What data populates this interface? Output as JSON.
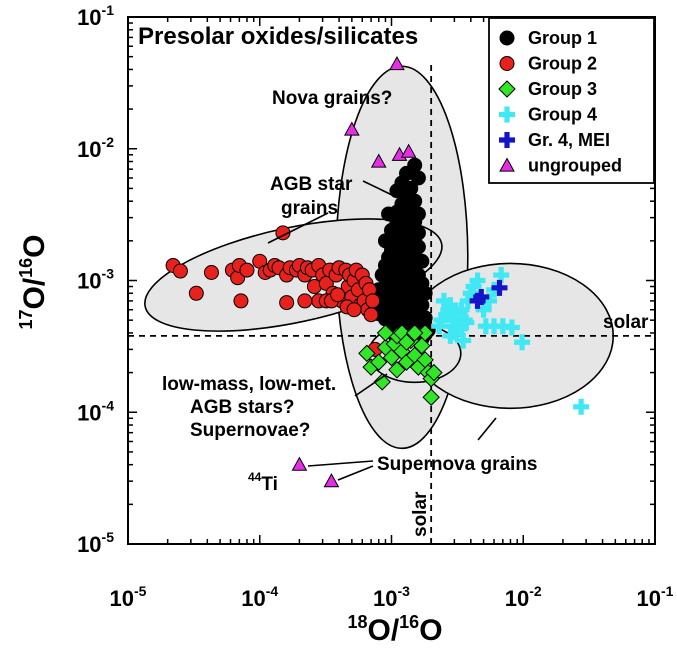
{
  "chart_data": {
    "type": "scatter",
    "title": "Presolar oxides/silicates",
    "xlabel": {
      "sup": "18",
      "base": "O/",
      "sup2": "16",
      "base2": "O"
    },
    "ylabel": {
      "sup": "17",
      "base": "O/",
      "sup2": "16",
      "base2": "O"
    },
    "x_scale": "log",
    "y_scale": "log",
    "xlim": [
      1e-05,
      0.1
    ],
    "ylim": [
      1e-05,
      0.1
    ],
    "x_ticks": [
      {
        "value": 1e-05,
        "base": "10",
        "exp": "-5"
      },
      {
        "value": 0.0001,
        "base": "10",
        "exp": "-4"
      },
      {
        "value": 0.001,
        "base": "10",
        "exp": "-3"
      },
      {
        "value": 0.01,
        "base": "10",
        "exp": "-2"
      },
      {
        "value": 0.1,
        "base": "10",
        "exp": "-1"
      }
    ],
    "y_ticks": [
      {
        "value": 1e-05,
        "base": "10",
        "exp": "-5"
      },
      {
        "value": 0.0001,
        "base": "10",
        "exp": "-4"
      },
      {
        "value": 0.001,
        "base": "10",
        "exp": "-3"
      },
      {
        "value": 0.01,
        "base": "10",
        "exp": "-2"
      },
      {
        "value": 0.1,
        "base": "10",
        "exp": "-1"
      }
    ],
    "solar": {
      "x": 0.002,
      "y": 0.00038,
      "x_label": "solar",
      "y_label": "solar"
    },
    "legend_position": "top-right",
    "regions": [
      {
        "name": "group1-ellipse",
        "cx": 0.0012,
        "cy": 0.0015,
        "rx_dec": 0.5,
        "ry_dec": 1.45,
        "angle": 0
      },
      {
        "name": "group2-ellipse",
        "cx": 0.00018,
        "cy": 0.0011,
        "rx_dec": 1.15,
        "ry_dec": 0.36,
        "angle": 12
      },
      {
        "name": "supernova-ellipse",
        "cx": 0.008,
        "cy": 0.00038,
        "rx_dec": 0.78,
        "ry_dec": 0.55,
        "angle": 0
      },
      {
        "name": "group3-ellipse",
        "cx": 0.0015,
        "cy": 0.00028,
        "rx_dec": 0.35,
        "ry_dec": 0.22,
        "angle": 0
      }
    ],
    "series": [
      {
        "name": "Group 1",
        "marker": "circle",
        "color": "#000000",
        "points": [
          [
            0.0015,
            0.0075
          ],
          [
            0.0013,
            0.0065
          ],
          [
            0.0016,
            0.006
          ],
          [
            0.0012,
            0.0055
          ],
          [
            0.0014,
            0.005
          ],
          [
            0.0011,
            0.0048
          ],
          [
            0.0013,
            0.0042
          ],
          [
            0.0015,
            0.004
          ],
          [
            0.0012,
            0.0038
          ],
          [
            0.0014,
            0.0035
          ],
          [
            0.0011,
            0.0033
          ],
          [
            0.00095,
            0.0032
          ],
          [
            0.0016,
            0.0032
          ],
          [
            0.0013,
            0.003
          ],
          [
            0.0011,
            0.0028
          ],
          [
            0.0015,
            0.0028
          ],
          [
            0.0012,
            0.0026
          ],
          [
            0.0014,
            0.0025
          ],
          [
            0.001,
            0.0024
          ],
          [
            0.0016,
            0.0023
          ],
          [
            0.0011,
            0.0022
          ],
          [
            0.0013,
            0.0021
          ],
          [
            0.0015,
            0.002
          ],
          [
            0.0012,
            0.002
          ],
          [
            0.0009,
            0.002
          ],
          [
            0.0014,
            0.0019
          ],
          [
            0.0011,
            0.0018
          ],
          [
            0.0016,
            0.0018
          ],
          [
            0.0013,
            0.0017
          ],
          [
            0.001,
            0.0017
          ],
          [
            0.0012,
            0.0016
          ],
          [
            0.0015,
            0.0016
          ],
          [
            0.00095,
            0.0015
          ],
          [
            0.0014,
            0.0015
          ],
          [
            0.0011,
            0.0014
          ],
          [
            0.0017,
            0.0014
          ],
          [
            0.0013,
            0.0014
          ],
          [
            0.0009,
            0.0013
          ],
          [
            0.0012,
            0.0013
          ],
          [
            0.0015,
            0.0013
          ],
          [
            0.001,
            0.0012
          ],
          [
            0.0014,
            0.0012
          ],
          [
            0.0011,
            0.0011
          ],
          [
            0.0016,
            0.0011
          ],
          [
            0.0013,
            0.0011
          ],
          [
            0.00085,
            0.0011
          ],
          [
            0.0012,
            0.001
          ],
          [
            0.0015,
            0.001
          ],
          [
            0.00095,
            0.001
          ],
          [
            0.0014,
            0.00095
          ],
          [
            0.0011,
            0.00095
          ],
          [
            0.0017,
            0.00095
          ],
          [
            0.0009,
            0.0009
          ],
          [
            0.0013,
            0.0009
          ],
          [
            0.0016,
            0.0009
          ],
          [
            0.001,
            0.00088
          ],
          [
            0.0012,
            0.00085
          ],
          [
            0.0015,
            0.00085
          ],
          [
            0.0008,
            0.00085
          ],
          [
            0.0014,
            0.0008
          ],
          [
            0.0011,
            0.0008
          ],
          [
            0.0018,
            0.0008
          ],
          [
            0.0009,
            0.00078
          ],
          [
            0.0013,
            0.00076
          ],
          [
            0.0016,
            0.00075
          ],
          [
            0.001,
            0.00073
          ],
          [
            0.0012,
            0.0007
          ],
          [
            0.0015,
            0.0007
          ],
          [
            0.00085,
            0.0007
          ],
          [
            0.0014,
            0.00068
          ],
          [
            0.0011,
            0.00066
          ],
          [
            0.0017,
            0.00065
          ],
          [
            0.0009,
            0.00064
          ],
          [
            0.0013,
            0.00062
          ],
          [
            0.0016,
            0.0006
          ],
          [
            0.001,
            0.0006
          ],
          [
            0.0012,
            0.00058
          ],
          [
            0.0015,
            0.00056
          ],
          [
            0.0008,
            0.00056
          ],
          [
            0.0014,
            0.00054
          ],
          [
            0.0011,
            0.00053
          ],
          [
            0.0018,
            0.00052
          ],
          [
            0.0009,
            0.00051
          ],
          [
            0.0013,
            0.0005
          ],
          [
            0.0016,
            0.00049
          ],
          [
            0.001,
            0.00048
          ],
          [
            0.0012,
            0.00047
          ],
          [
            0.0015,
            0.00046
          ],
          [
            0.0014,
            0.00045
          ],
          [
            0.0011,
            0.00044
          ],
          [
            0.0017,
            0.00044
          ],
          [
            0.0013,
            0.00043
          ],
          [
            0.0019,
            0.00042
          ],
          [
            0.0016,
            0.00041
          ],
          [
            0.0012,
            0.0004
          ],
          [
            0.0014,
            0.0004
          ],
          [
            0.00105,
            0.00039
          ],
          [
            0.0018,
            0.00039
          ],
          [
            0.0015,
            0.00038
          ],
          [
            0.0013,
            0.00037
          ],
          [
            0.0017,
            0.00036
          ],
          [
            0.0011,
            0.00036
          ]
        ]
      },
      {
        "name": "Group 2",
        "marker": "circle",
        "color": "#e8211d",
        "points": [
          [
            2.2e-05,
            0.0013
          ],
          [
            2.5e-05,
            0.00118
          ],
          [
            3.3e-05,
            0.0008
          ],
          [
            4.3e-05,
            0.00115
          ],
          [
            6.2e-05,
            0.0012
          ],
          [
            6.8e-05,
            0.00105
          ],
          [
            7.2e-05,
            0.0007
          ],
          [
            7e-05,
            0.0013
          ],
          [
            8e-05,
            0.0012
          ],
          [
            0.0001,
            0.0014
          ],
          [
            0.00011,
            0.00115
          ],
          [
            0.00012,
            0.0012
          ],
          [
            0.00013,
            0.0013
          ],
          [
            0.00014,
            0.00125
          ],
          [
            0.00016,
            0.0011
          ],
          [
            0.00017,
            0.00125
          ],
          [
            0.00019,
            0.0012
          ],
          [
            0.0002,
            0.0013
          ],
          [
            0.00022,
            0.0011
          ],
          [
            0.00023,
            0.00125
          ],
          [
            0.00025,
            0.0012
          ],
          [
            0.00026,
            0.0009
          ],
          [
            0.00028,
            0.0013
          ],
          [
            0.0003,
            0.0011
          ],
          [
            0.00032,
            0.00095
          ],
          [
            0.00034,
            0.0012
          ],
          [
            0.00036,
            0.0008
          ],
          [
            0.00038,
            0.0011
          ],
          [
            0.0004,
            0.00125
          ],
          [
            0.00042,
            0.0007
          ],
          [
            0.00045,
            0.0012
          ],
          [
            0.00047,
            0.0009
          ],
          [
            0.00048,
            0.0011
          ],
          [
            0.0005,
            0.00075
          ],
          [
            0.00052,
            0.001
          ],
          [
            0.00054,
            0.0012
          ],
          [
            0.00056,
            0.00085
          ],
          [
            0.00058,
            0.00065
          ],
          [
            0.0006,
            0.0011
          ],
          [
            0.00062,
            0.0007
          ],
          [
            0.00064,
            0.00095
          ],
          [
            0.00066,
            0.0006
          ],
          [
            0.00068,
            0.00085
          ],
          [
            0.0007,
            0.00055
          ],
          [
            0.00072,
            0.0007
          ],
          [
            0.00028,
            0.0007
          ],
          [
            0.00032,
            0.0007
          ],
          [
            0.00035,
            0.0007
          ],
          [
            0.00022,
            0.0007
          ],
          [
            0.00016,
            0.00068
          ],
          [
            0.00075,
            0.0003
          ],
          [
            0.00015,
            0.0023
          ],
          [
            0.00039,
            0.00078
          ],
          [
            0.00046,
            0.00063
          ],
          [
            0.00052,
            0.0006
          ]
        ]
      },
      {
        "name": "Group 3",
        "marker": "diamond",
        "color": "#31e627",
        "points": [
          [
            0.00065,
            0.00028
          ],
          [
            0.0007,
            0.00022
          ],
          [
            0.0008,
            0.00024
          ],
          [
            0.0009,
            0.00031
          ],
          [
            0.001,
            0.00026
          ],
          [
            0.00105,
            0.00033
          ],
          [
            0.0011,
            0.00038
          ],
          [
            0.0012,
            0.00029
          ],
          [
            0.0013,
            0.00024
          ],
          [
            0.0014,
            0.00035
          ],
          [
            0.0015,
            0.00027
          ],
          [
            0.0016,
            0.00022
          ],
          [
            0.0017,
            0.00032
          ],
          [
            0.0018,
            0.00025
          ],
          [
            0.0019,
            0.0002
          ],
          [
            0.002,
            0.00018
          ],
          [
            0.0021,
            0.0002
          ],
          [
            0.002,
            0.00013
          ],
          [
            0.00085,
            0.00017
          ],
          [
            0.0012,
            0.0004
          ],
          [
            0.0018,
            0.0004
          ],
          [
            0.0015,
            0.0004
          ],
          [
            0.0009,
            0.0004
          ],
          [
            0.0013,
            0.00034
          ],
          [
            0.0011,
            0.00021
          ]
        ]
      },
      {
        "name": "Group 4",
        "marker": "plus",
        "color": "#3fe8f2",
        "points": [
          [
            0.0023,
            0.00045
          ],
          [
            0.0024,
            0.0005
          ],
          [
            0.0026,
            0.00055
          ],
          [
            0.0027,
            0.0006
          ],
          [
            0.0028,
            0.00065
          ],
          [
            0.0029,
            0.0005
          ],
          [
            0.003,
            0.00045
          ],
          [
            0.0031,
            0.0004
          ],
          [
            0.0032,
            0.00055
          ],
          [
            0.0034,
            0.0006
          ],
          [
            0.0036,
            0.0005
          ],
          [
            0.0038,
            0.0007
          ],
          [
            0.004,
            0.0008
          ],
          [
            0.0042,
            0.0009
          ],
          [
            0.0045,
            0.001
          ],
          [
            0.005,
            0.0006
          ],
          [
            0.0055,
            0.0007
          ],
          [
            0.006,
            0.00085
          ],
          [
            0.0068,
            0.0011
          ],
          [
            0.0052,
            0.00045
          ],
          [
            0.006,
            0.00045
          ],
          [
            0.007,
            0.00045
          ],
          [
            0.0082,
            0.00044
          ],
          [
            0.0098,
            0.00034
          ],
          [
            0.0275,
            0.00011
          ],
          [
            0.0035,
            0.00035
          ],
          [
            0.0028,
            0.00038
          ],
          [
            0.0033,
            0.00043
          ],
          [
            0.0025,
            0.0007
          ],
          [
            0.0037,
            0.00048
          ]
        ]
      },
      {
        "name": "Gr. 4, MEI",
        "marker": "plus",
        "color": "#1414c8",
        "points": [
          [
            0.0045,
            0.0007
          ],
          [
            0.0048,
            0.00075
          ],
          [
            0.0066,
            0.00088
          ]
        ]
      },
      {
        "name": "ungrouped",
        "marker": "triangle",
        "color": "#e62de6",
        "points": [
          [
            0.0011,
            0.044
          ],
          [
            0.0005,
            0.014
          ],
          [
            0.0008,
            0.008
          ],
          [
            0.00115,
            0.009
          ],
          [
            0.00135,
            0.0095
          ],
          [
            0.0002,
            4e-05
          ],
          [
            0.00035,
            3e-05
          ]
        ]
      }
    ],
    "annotations": [
      {
        "name": "nova-label",
        "text": "Nova grains?"
      },
      {
        "name": "agb-label",
        "line1": "AGB star",
        "line2": "grains"
      },
      {
        "name": "solar-y-label",
        "text": "solar"
      },
      {
        "name": "solar-x-label",
        "text": "solar"
      },
      {
        "name": "lowmass-label",
        "line1": "low-mass, low-met.",
        "line2": "AGB stars?",
        "line3": "Supernovae?"
      },
      {
        "name": "supernova-label",
        "text": "Supernova grains"
      },
      {
        "name": "ti-label",
        "sup": "44",
        "base": "Ti"
      }
    ]
  }
}
